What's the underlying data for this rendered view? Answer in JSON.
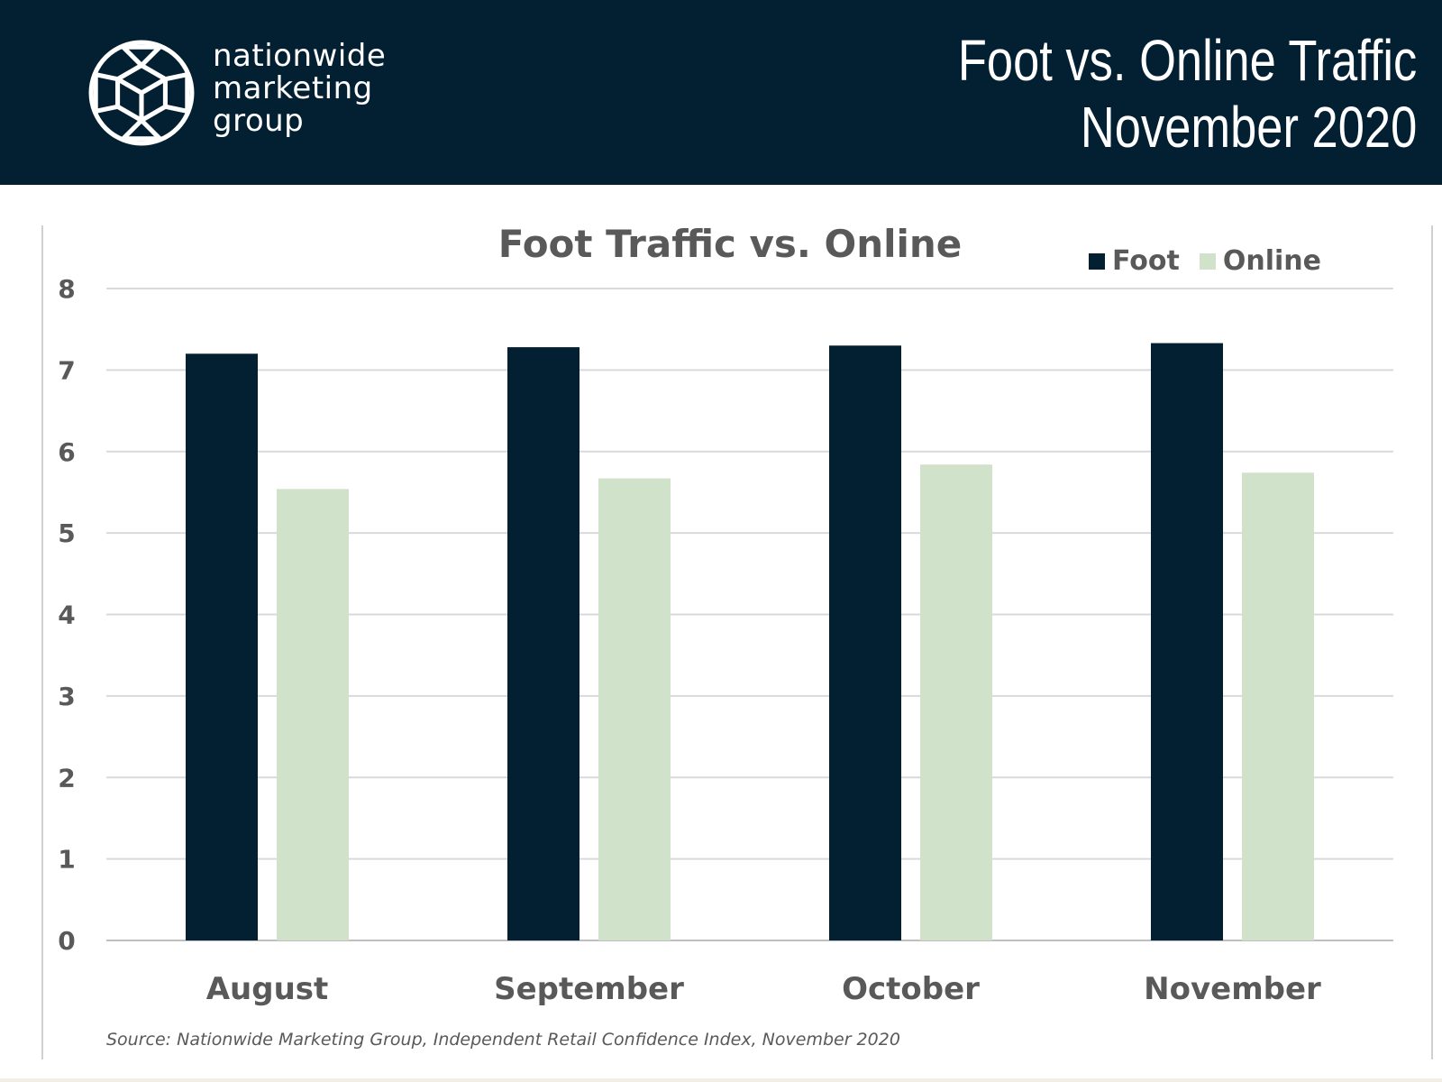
{
  "header": {
    "brand_lines": [
      "nationwide",
      "marketing",
      "group"
    ],
    "title_line1": "Foot vs. Online Traffic",
    "title_line2": "November 2020",
    "logo_icon": "geodesic-cube-logo-icon"
  },
  "colors": {
    "header_bg": "#032033",
    "foot": "#032033",
    "online": "#d0e2c9",
    "text": "#595959",
    "grid": "#d9d9d9"
  },
  "chart_data": {
    "type": "bar",
    "title": "Foot Traffic vs. Online",
    "categories": [
      "August",
      "September",
      "October",
      "November"
    ],
    "series": [
      {
        "name": "Foot",
        "values": [
          7.2,
          7.28,
          7.3,
          7.33
        ]
      },
      {
        "name": "Online",
        "values": [
          5.54,
          5.67,
          5.84,
          5.74
        ]
      }
    ],
    "ylim": [
      0,
      8
    ],
    "yticks": [
      "0",
      "1",
      "2",
      "3",
      "4",
      "5",
      "6",
      "7",
      "8"
    ],
    "grid": true,
    "legend": "top-right"
  },
  "footer": {
    "source": "Source: Nationwide Marketing Group, Independent Retail Confidence Index, November 2020"
  }
}
